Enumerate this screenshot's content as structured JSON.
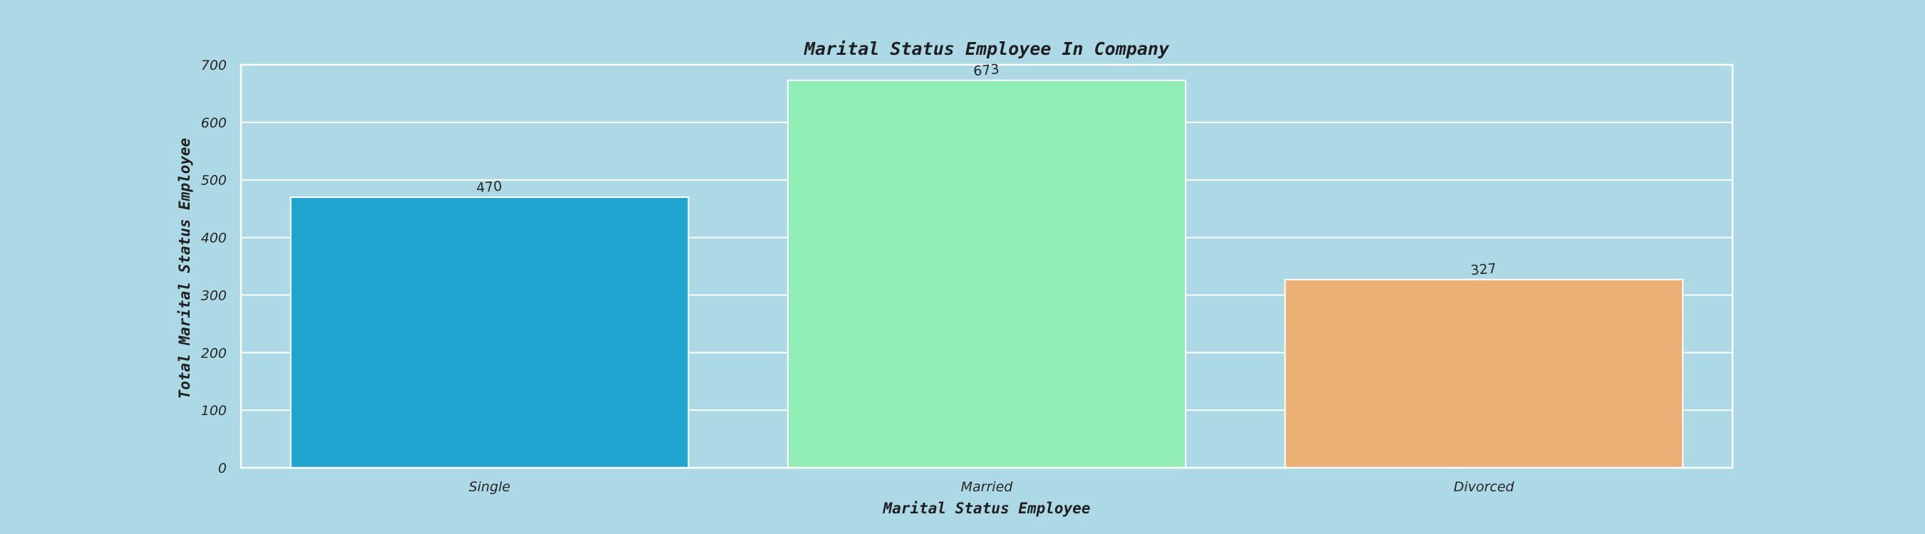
{
  "chart_data": {
    "type": "bar",
    "title": "Marital Status Employee In Company",
    "xlabel": "Marital Status Employee",
    "ylabel": "Total Marital Status Employee",
    "categories": [
      "Single",
      "Married",
      "Divorced"
    ],
    "values": [
      470,
      673,
      327
    ],
    "data_labels": [
      "470",
      "673",
      "327"
    ],
    "ylim": [
      0,
      700
    ],
    "yticks": [
      0,
      100,
      200,
      300,
      400,
      500,
      600,
      700
    ],
    "ytick_labels": [
      "0",
      "100",
      "200",
      "300",
      "400",
      "500",
      "600",
      "700"
    ],
    "grid": true,
    "colors": [
      "#1fa5cf",
      "#90eeb4",
      "#ebb075"
    ],
    "background": "#add8e6"
  }
}
